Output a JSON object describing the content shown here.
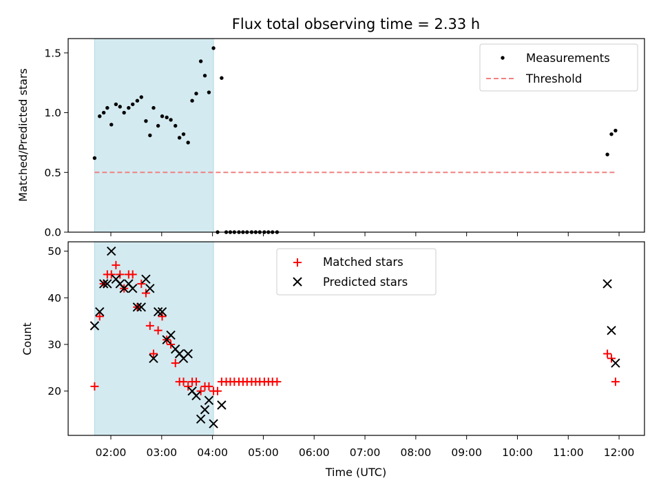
{
  "chart_data": {
    "title": "Flux total observing time = 2.33 h",
    "xlabel": "Time (UTC)",
    "x_ticks": [
      "02:00",
      "03:00",
      "04:00",
      "05:00",
      "06:00",
      "07:00",
      "08:00",
      "09:00",
      "10:00",
      "11:00",
      "12:00"
    ],
    "x_range_hours": [
      1.16,
      12.5
    ],
    "shaded_span_hours": [
      1.68,
      4.02
    ],
    "shade_color": "#d3eaf0",
    "panels": [
      {
        "type": "scatter",
        "ylabel": "Matched/Predicted stars",
        "ylim": [
          0,
          1.62
        ],
        "y_ticks": [
          "0.0",
          "0.5",
          "1.0",
          "1.5"
        ],
        "y_tick_values": [
          0,
          0.5,
          1.0,
          1.5
        ],
        "legend_position": "top-right",
        "threshold": {
          "name": "Threshold",
          "value": 0.5,
          "x": [
            1.68,
            11.93
          ],
          "color": "#f08080"
        },
        "series": [
          {
            "name": "Measurements",
            "marker": "dot",
            "color": "#000000",
            "x": [
              1.68,
              1.78,
              1.86,
              1.93,
              2.01,
              2.1,
              2.18,
              2.26,
              2.35,
              2.43,
              2.52,
              2.6,
              2.69,
              2.77,
              2.84,
              2.93,
              3.01,
              3.1,
              3.18,
              3.27,
              3.35,
              3.43,
              3.52,
              3.6,
              3.68,
              3.77,
              3.85,
              3.93,
              4.02,
              4.1,
              4.18,
              4.27,
              4.35,
              4.43,
              4.52,
              4.6,
              4.68,
              4.77,
              4.85,
              4.93,
              5.02,
              5.1,
              5.18,
              5.27,
              11.77,
              11.85,
              11.93
            ],
            "y": [
              0.62,
              0.97,
              1.0,
              1.04,
              0.9,
              1.07,
              1.05,
              1.0,
              1.04,
              1.07,
              1.1,
              1.13,
              0.93,
              0.81,
              1.04,
              0.89,
              0.97,
              0.96,
              0.94,
              0.89,
              0.79,
              0.82,
              0.75,
              1.1,
              1.16,
              1.43,
              1.31,
              1.17,
              1.54,
              0.0,
              1.29,
              0.0,
              0.0,
              0.0,
              0.0,
              0.0,
              0.0,
              0.0,
              0.0,
              0.0,
              0.0,
              0.0,
              0.0,
              0.0,
              0.65,
              0.82,
              0.85
            ]
          }
        ]
      },
      {
        "type": "scatter",
        "ylabel": "Count",
        "ylim": [
          10.5,
          52
        ],
        "y_ticks": [
          "20",
          "30",
          "40",
          "50"
        ],
        "y_tick_values": [
          20,
          30,
          40,
          50
        ],
        "legend_position": "top-center",
        "series": [
          {
            "name": "Matched stars",
            "marker": "plus",
            "color": "#ff0000",
            "x": [
              1.68,
              1.78,
              1.86,
              1.93,
              2.01,
              2.1,
              2.18,
              2.26,
              2.35,
              2.43,
              2.52,
              2.6,
              2.69,
              2.77,
              2.84,
              2.93,
              3.01,
              3.1,
              3.18,
              3.27,
              3.35,
              3.43,
              3.52,
              3.6,
              3.68,
              3.77,
              3.85,
              3.93,
              4.02,
              4.1,
              4.18,
              4.27,
              4.35,
              4.43,
              4.52,
              4.6,
              4.68,
              4.77,
              4.85,
              4.93,
              5.02,
              5.1,
              5.18,
              5.27,
              11.77,
              11.85,
              11.93
            ],
            "y": [
              21,
              36,
              43,
              45,
              45,
              47,
              45,
              42,
              45,
              45,
              38,
              43,
              41,
              34,
              28,
              33,
              36,
              31,
              30,
              26,
              22,
              22,
              21,
              22,
              22,
              20,
              21,
              21,
              20,
              20,
              22,
              22,
              22,
              22,
              22,
              22,
              22,
              22,
              22,
              22,
              22,
              22,
              22,
              22,
              28,
              27,
              22
            ]
          },
          {
            "name": "Predicted stars",
            "marker": "x",
            "color": "#000000",
            "x": [
              1.68,
              1.78,
              1.86,
              1.93,
              2.01,
              2.1,
              2.18,
              2.26,
              2.35,
              2.43,
              2.52,
              2.6,
              2.69,
              2.77,
              2.84,
              2.93,
              3.01,
              3.1,
              3.18,
              3.27,
              3.35,
              3.43,
              3.52,
              3.6,
              3.68,
              3.77,
              3.85,
              3.93,
              4.02,
              4.18,
              11.77,
              11.85,
              11.93
            ],
            "y": [
              34,
              37,
              43,
              43,
              50,
              44,
              43,
              42,
              43,
              42,
              38,
              38,
              44,
              42,
              27,
              37,
              37,
              31,
              32,
              29,
              28,
              27,
              28,
              20,
              19,
              14,
              16,
              18,
              13,
              17,
              43,
              33,
              26
            ]
          }
        ]
      }
    ]
  }
}
